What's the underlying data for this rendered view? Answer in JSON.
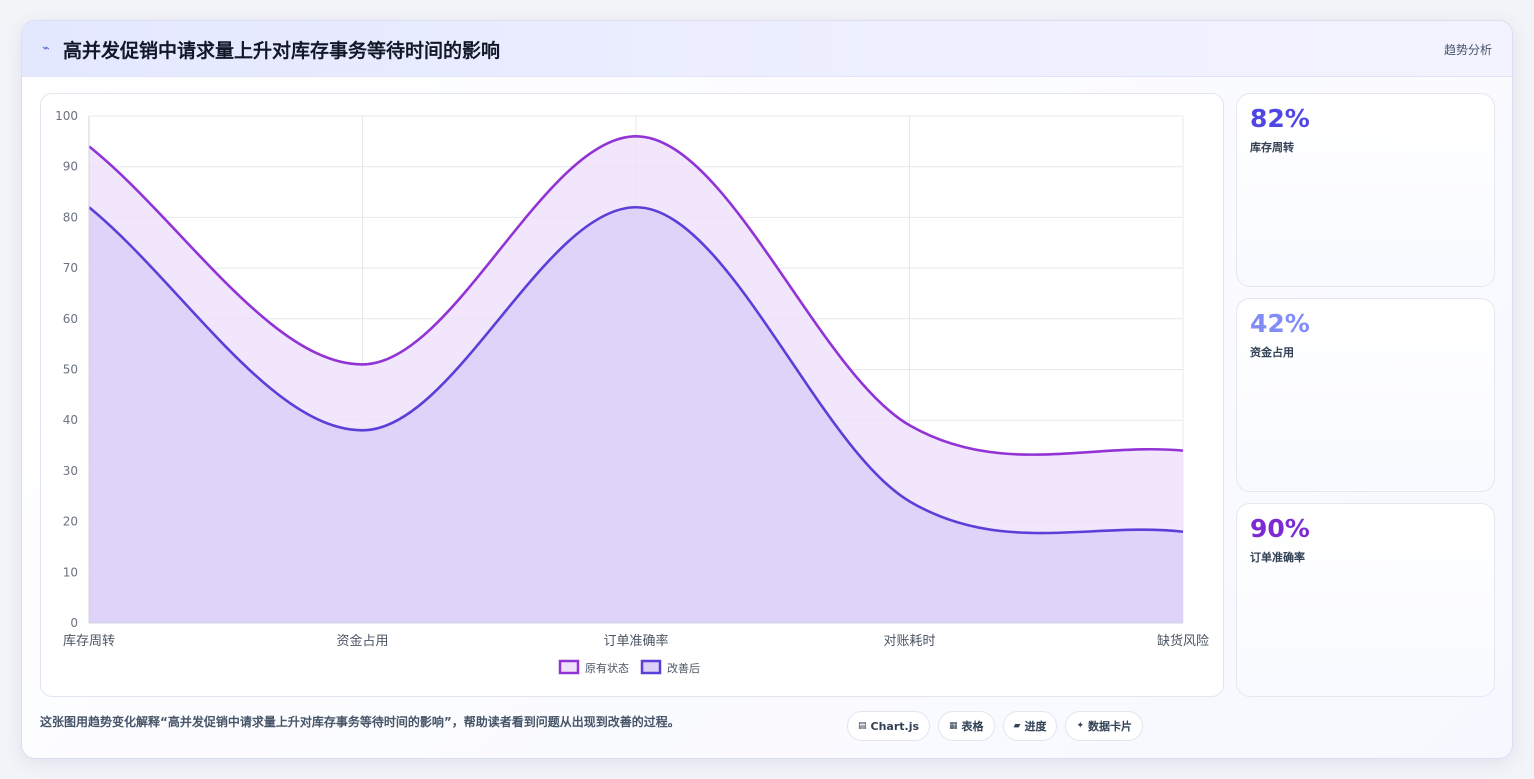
{
  "header": {
    "icon": "trend-icon",
    "title": "高并发促销中请求量上升对库存事务等待时间的影响",
    "tag": "趋势分析"
  },
  "chart_data": {
    "type": "area",
    "categories": [
      "库存周转",
      "资金占用",
      "订单准确率",
      "对账耗时",
      "缺货风险"
    ],
    "series": [
      {
        "name": "原有状态",
        "values": [
          94,
          51,
          96,
          39,
          34
        ],
        "color": "#9233d6",
        "fill": "#efe2fa"
      },
      {
        "name": "改善后",
        "values": [
          82,
          38,
          82,
          24,
          18
        ],
        "color": "#5b3fd8",
        "fill": "#dccff8"
      }
    ],
    "ylim": [
      0,
      100
    ],
    "yticks": [
      0,
      10,
      20,
      30,
      40,
      50,
      60,
      70,
      80,
      90,
      100
    ],
    "grid": true,
    "legend": "bottom"
  },
  "kpis": [
    {
      "value": "82%",
      "label": "库存周转",
      "color": "#4f46e5"
    },
    {
      "value": "42%",
      "label": "资金占用",
      "color": "#818cf8"
    },
    {
      "value": "90%",
      "label": "订单准确率",
      "color": "#7c2bd4"
    }
  ],
  "footer": {
    "text": "这张图用趋势变化解释“高并发促销中请求量上升对库存事务等待时间的影响”，帮助读者看到问题从出现到改善的过程。",
    "chips": [
      {
        "icon": "chart-icon",
        "glyph": "▤",
        "label": "Chart.js"
      },
      {
        "icon": "table-icon",
        "glyph": "▦",
        "label": "表格"
      },
      {
        "icon": "progress-icon",
        "glyph": "▰",
        "label": "进度"
      },
      {
        "icon": "sparkle-icon",
        "glyph": "✦",
        "label": "数据卡片"
      }
    ]
  }
}
